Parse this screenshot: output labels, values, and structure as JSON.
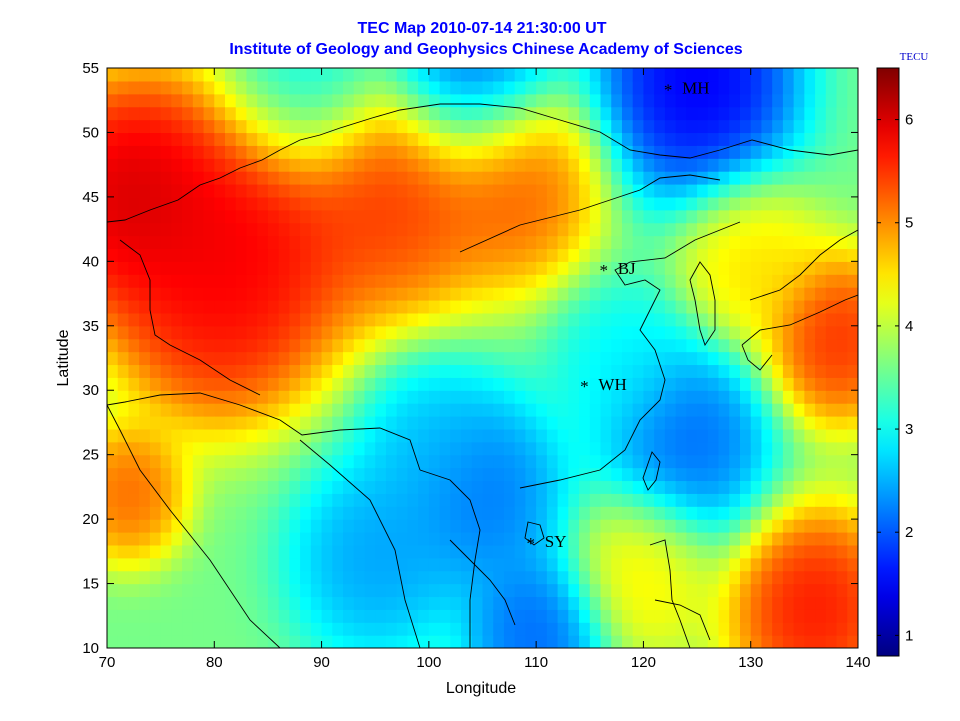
{
  "chart_data": {
    "type": "heatmap",
    "title": "TEC Map 2010-07-14 21:30:00 UT",
    "subtitle": "Institute of Geology and Geophysics Chinese Academy of Sciences",
    "xlabel": "Longitude",
    "ylabel": "Latitude",
    "xlim": [
      70,
      140
    ],
    "ylim": [
      10,
      55
    ],
    "x_ticks": [
      "70",
      "80",
      "90",
      "100",
      "110",
      "120",
      "130",
      "140"
    ],
    "y_ticks": [
      "10",
      "15",
      "20",
      "25",
      "30",
      "35",
      "40",
      "45",
      "50",
      "55"
    ],
    "colorbar": {
      "label": "TECU",
      "range": [
        0.8,
        6.5
      ],
      "ticks": [
        "1",
        "2",
        "3",
        "4",
        "5",
        "6"
      ],
      "colormap": "jet"
    },
    "stations": [
      {
        "name": "MH",
        "lon": 122.3,
        "lat": 53.5
      },
      {
        "name": "BJ",
        "lon": 116.3,
        "lat": 39.5
      },
      {
        "name": "WH",
        "lon": 114.5,
        "lat": 30.5
      },
      {
        "name": "SY",
        "lon": 109.5,
        "lat": 18.3
      }
    ],
    "features": [
      {
        "lon": 72,
        "lat": 45,
        "value": 6.5,
        "spread": 7
      },
      {
        "lon": 83,
        "lat": 43,
        "value": 6.2,
        "spread": 9
      },
      {
        "lon": 97,
        "lat": 45,
        "value": 5.8,
        "spread": 7
      },
      {
        "lon": 108,
        "lat": 46,
        "value": 5.6,
        "spread": 6
      },
      {
        "lon": 80,
        "lat": 37,
        "value": 6.0,
        "spread": 7
      },
      {
        "lon": 72,
        "lat": 22,
        "value": 5.5,
        "spread": 4
      },
      {
        "lon": 138,
        "lat": 34,
        "value": 5.9,
        "spread": 5
      },
      {
        "lon": 136,
        "lat": 13,
        "value": 6.1,
        "spread": 6
      },
      {
        "lon": 125,
        "lat": 54,
        "value": 1.0,
        "spread": 7
      },
      {
        "lon": 104,
        "lat": 55,
        "value": 1.7,
        "spread": 6
      },
      {
        "lon": 88,
        "lat": 54,
        "value": 2.6,
        "spread": 6
      },
      {
        "lon": 124,
        "lat": 26,
        "value": 1.8,
        "spread": 6
      },
      {
        "lon": 105,
        "lat": 22,
        "value": 1.9,
        "spread": 6
      },
      {
        "lon": 95,
        "lat": 17,
        "value": 2.2,
        "spread": 6
      },
      {
        "lon": 110,
        "lat": 11,
        "value": 1.8,
        "spread": 5
      },
      {
        "lon": 100,
        "lat": 26,
        "value": 2.5,
        "spread": 5
      },
      {
        "lon": 118,
        "lat": 32,
        "value": 2.8,
        "spread": 5
      },
      {
        "lon": 120,
        "lat": 16,
        "value": 4.6,
        "spread": 5
      },
      {
        "lon": 130,
        "lat": 40,
        "value": 4.7,
        "spread": 5
      }
    ]
  }
}
